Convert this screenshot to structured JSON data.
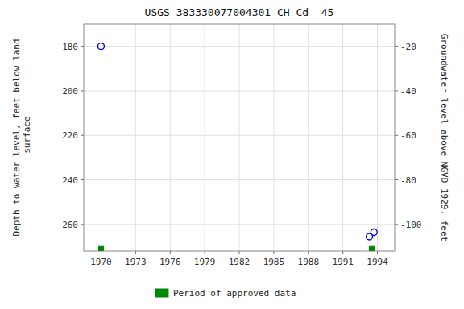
{
  "chart_data": {
    "type": "scatter",
    "title": "USGS 383330077004301 CH Cd  45",
    "y_label": "Depth to water level, feet below land\n surface",
    "y2_label": "Groundwater level above NGVD 1929, feet",
    "xlim": [
      1968.5,
      1995.5
    ],
    "xticks": [
      1970,
      1973,
      1976,
      1979,
      1982,
      1985,
      1988,
      1991,
      1994
    ],
    "ylim": [
      272,
      170
    ],
    "yticks": [
      180,
      200,
      220,
      240,
      260
    ],
    "y2lim": [
      -112,
      -10
    ],
    "y2ticks": [
      -20,
      -40,
      -60,
      -80,
      -100
    ],
    "grid": true,
    "legend": "bottom",
    "series": [
      {
        "type": "scatter",
        "marker": "circle",
        "color": "#0000cc",
        "x": [
          1970.0,
          1993.3,
          1993.7
        ],
        "values": [
          180.0,
          265.5,
          263.5
        ]
      },
      {
        "type": "scatter",
        "marker": "square",
        "color": "#008800",
        "name": "Period of approved data",
        "x": [
          1970.0,
          1993.5
        ],
        "values": [
          271.0,
          271.0
        ]
      }
    ]
  }
}
